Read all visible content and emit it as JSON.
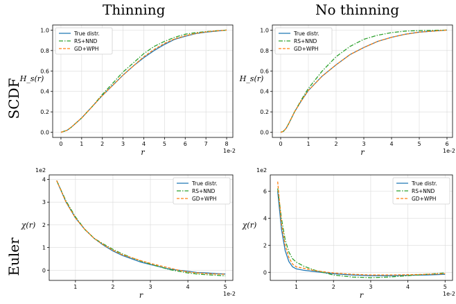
{
  "figure": {
    "col_titles": [
      "Thinning",
      "No thinning"
    ],
    "row_titles": [
      "SCDF",
      "Euler"
    ]
  },
  "colors": {
    "true": "#1f77b4",
    "rs": "#2ca02c",
    "gd": "#ff7f0e",
    "grid": "#d9d9d9"
  },
  "chart_data": [
    {
      "type": "line",
      "panel": "top-left",
      "xlabel": "r",
      "ylabel": "H_s(r)",
      "x_offset_label": "1e-2",
      "y_offset_label": "",
      "xlim": [
        -0.4,
        8.3
      ],
      "ylim": [
        -0.05,
        1.05
      ],
      "xticks": [
        0,
        1,
        2,
        3,
        4,
        5,
        6,
        7,
        8
      ],
      "yticks": [
        0.0,
        0.2,
        0.4,
        0.6,
        0.8,
        1.0
      ],
      "ytick_labels": [
        "0.0",
        "0.2",
        "0.4",
        "0.6",
        "0.8",
        "1.0"
      ],
      "grid": true,
      "legend": "top-left",
      "x": [
        0,
        0.3,
        0.5,
        1,
        1.5,
        2,
        2.5,
        3,
        3.5,
        4,
        4.5,
        5,
        5.5,
        6,
        6.5,
        7,
        7.5,
        8
      ],
      "series": [
        {
          "name": "True distr.",
          "style": "solid",
          "values": [
            0,
            0.02,
            0.05,
            0.14,
            0.25,
            0.36,
            0.46,
            0.56,
            0.65,
            0.73,
            0.8,
            0.86,
            0.91,
            0.94,
            0.965,
            0.98,
            0.99,
            1.0
          ]
        },
        {
          "name": "RS+NND",
          "style": "dashdot",
          "values": [
            0,
            0.02,
            0.05,
            0.14,
            0.25,
            0.37,
            0.48,
            0.59,
            0.68,
            0.77,
            0.84,
            0.89,
            0.93,
            0.96,
            0.975,
            0.985,
            0.993,
            1.0
          ]
        },
        {
          "name": "GD+WPH",
          "style": "dashed",
          "values": [
            0,
            0.02,
            0.05,
            0.14,
            0.25,
            0.36,
            0.46,
            0.56,
            0.65,
            0.74,
            0.81,
            0.87,
            0.915,
            0.945,
            0.967,
            0.982,
            0.992,
            1.0
          ]
        }
      ]
    },
    {
      "type": "line",
      "panel": "top-right",
      "xlabel": "r",
      "ylabel": "H_s(r)",
      "x_offset_label": "1e-2",
      "y_offset_label": "",
      "xlim": [
        -0.3,
        6.2
      ],
      "ylim": [
        -0.05,
        1.05
      ],
      "xticks": [
        0,
        1,
        2,
        3,
        4,
        5,
        6
      ],
      "yticks": [
        0.0,
        0.2,
        0.4,
        0.6,
        0.8,
        1.0
      ],
      "ytick_labels": [
        "0.0",
        "0.2",
        "0.4",
        "0.6",
        "0.8",
        "1.0"
      ],
      "grid": true,
      "legend": "top-left",
      "x": [
        0,
        0.1,
        0.2,
        0.3,
        0.5,
        0.75,
        1,
        1.5,
        2,
        2.5,
        3,
        3.5,
        4,
        4.5,
        5,
        5.5,
        6
      ],
      "series": [
        {
          "name": "True distr.",
          "style": "solid",
          "values": [
            0,
            0.01,
            0.04,
            0.09,
            0.2,
            0.31,
            0.41,
            0.55,
            0.66,
            0.76,
            0.83,
            0.89,
            0.93,
            0.96,
            0.98,
            0.99,
            1.0
          ]
        },
        {
          "name": "RS+NND",
          "style": "dashdot",
          "values": [
            0,
            0.01,
            0.04,
            0.09,
            0.2,
            0.32,
            0.43,
            0.6,
            0.74,
            0.84,
            0.91,
            0.95,
            0.975,
            0.99,
            0.995,
            0.998,
            1.0
          ]
        },
        {
          "name": "GD+WPH",
          "style": "dashed",
          "values": [
            0,
            0.01,
            0.04,
            0.09,
            0.2,
            0.31,
            0.41,
            0.55,
            0.66,
            0.76,
            0.83,
            0.89,
            0.93,
            0.96,
            0.98,
            0.99,
            1.0
          ]
        }
      ]
    },
    {
      "type": "line",
      "panel": "bottom-left",
      "xlabel": "r",
      "ylabel": "χ(r)",
      "x_offset_label": "1e-2",
      "y_offset_label": "1e2",
      "xlim": [
        0.3,
        5.2
      ],
      "ylim": [
        -0.45,
        4.2
      ],
      "xticks": [
        1,
        2,
        3,
        4,
        5
      ],
      "yticks": [
        0,
        1,
        2,
        3,
        4
      ],
      "ytick_labels": [
        "0",
        "1",
        "2",
        "3",
        "4"
      ],
      "grid": true,
      "legend": "top-right",
      "x": [
        0.5,
        0.75,
        1,
        1.25,
        1.5,
        1.75,
        2,
        2.25,
        2.5,
        2.75,
        3,
        3.25,
        3.5,
        3.75,
        4,
        4.25,
        4.5,
        4.75,
        5
      ],
      "series": [
        {
          "name": "True distr.",
          "style": "solid",
          "values": [
            3.95,
            3.0,
            2.3,
            1.8,
            1.4,
            1.1,
            0.85,
            0.65,
            0.5,
            0.35,
            0.25,
            0.15,
            0.05,
            0.0,
            -0.05,
            -0.1,
            -0.12,
            -0.15,
            -0.17
          ]
        },
        {
          "name": "RS+NND",
          "style": "dashdot",
          "values": [
            3.95,
            3.05,
            2.35,
            1.8,
            1.4,
            1.15,
            0.92,
            0.72,
            0.55,
            0.4,
            0.27,
            0.15,
            0.03,
            -0.05,
            -0.12,
            -0.17,
            -0.2,
            -0.22,
            -0.25
          ]
        },
        {
          "name": "GD+WPH",
          "style": "dashed",
          "values": [
            3.95,
            3.0,
            2.3,
            1.8,
            1.4,
            1.12,
            0.88,
            0.68,
            0.55,
            0.42,
            0.3,
            0.2,
            0.1,
            0.0,
            -0.08,
            -0.12,
            -0.15,
            -0.17,
            -0.18
          ]
        }
      ]
    },
    {
      "type": "line",
      "panel": "bottom-right",
      "xlabel": "r",
      "ylabel": "χ(r)",
      "x_offset_label": "1e-2",
      "y_offset_label": "1e2",
      "xlim": [
        0.3,
        5.2
      ],
      "ylim": [
        -0.6,
        7.2
      ],
      "xticks": [
        1,
        2,
        3,
        4,
        5
      ],
      "yticks": [
        0,
        2,
        4,
        6
      ],
      "ytick_labels": [
        "0",
        "2",
        "4",
        "6"
      ],
      "grid": true,
      "legend": "top-right",
      "x": [
        0.5,
        0.6,
        0.7,
        0.8,
        0.9,
        1,
        1.2,
        1.5,
        2,
        2.5,
        3,
        3.5,
        4,
        4.5,
        5
      ],
      "series": [
        {
          "name": "True distr.",
          "style": "solid",
          "values": [
            6.0,
            3.2,
            1.6,
            0.8,
            0.4,
            0.25,
            0.15,
            0.05,
            -0.1,
            -0.2,
            -0.25,
            -0.25,
            -0.22,
            -0.2,
            -0.15
          ]
        },
        {
          "name": "RS+NND",
          "style": "dashdot",
          "values": [
            6.2,
            4.0,
            2.4,
            1.5,
            1.0,
            0.75,
            0.45,
            0.15,
            -0.2,
            -0.35,
            -0.4,
            -0.35,
            -0.25,
            -0.15,
            -0.05
          ]
        },
        {
          "name": "GD+WPH",
          "style": "dashed",
          "values": [
            6.7,
            3.6,
            2.0,
            1.1,
            0.6,
            0.4,
            0.3,
            0.12,
            -0.05,
            -0.15,
            -0.2,
            -0.2,
            -0.18,
            -0.15,
            -0.1
          ]
        }
      ]
    }
  ]
}
